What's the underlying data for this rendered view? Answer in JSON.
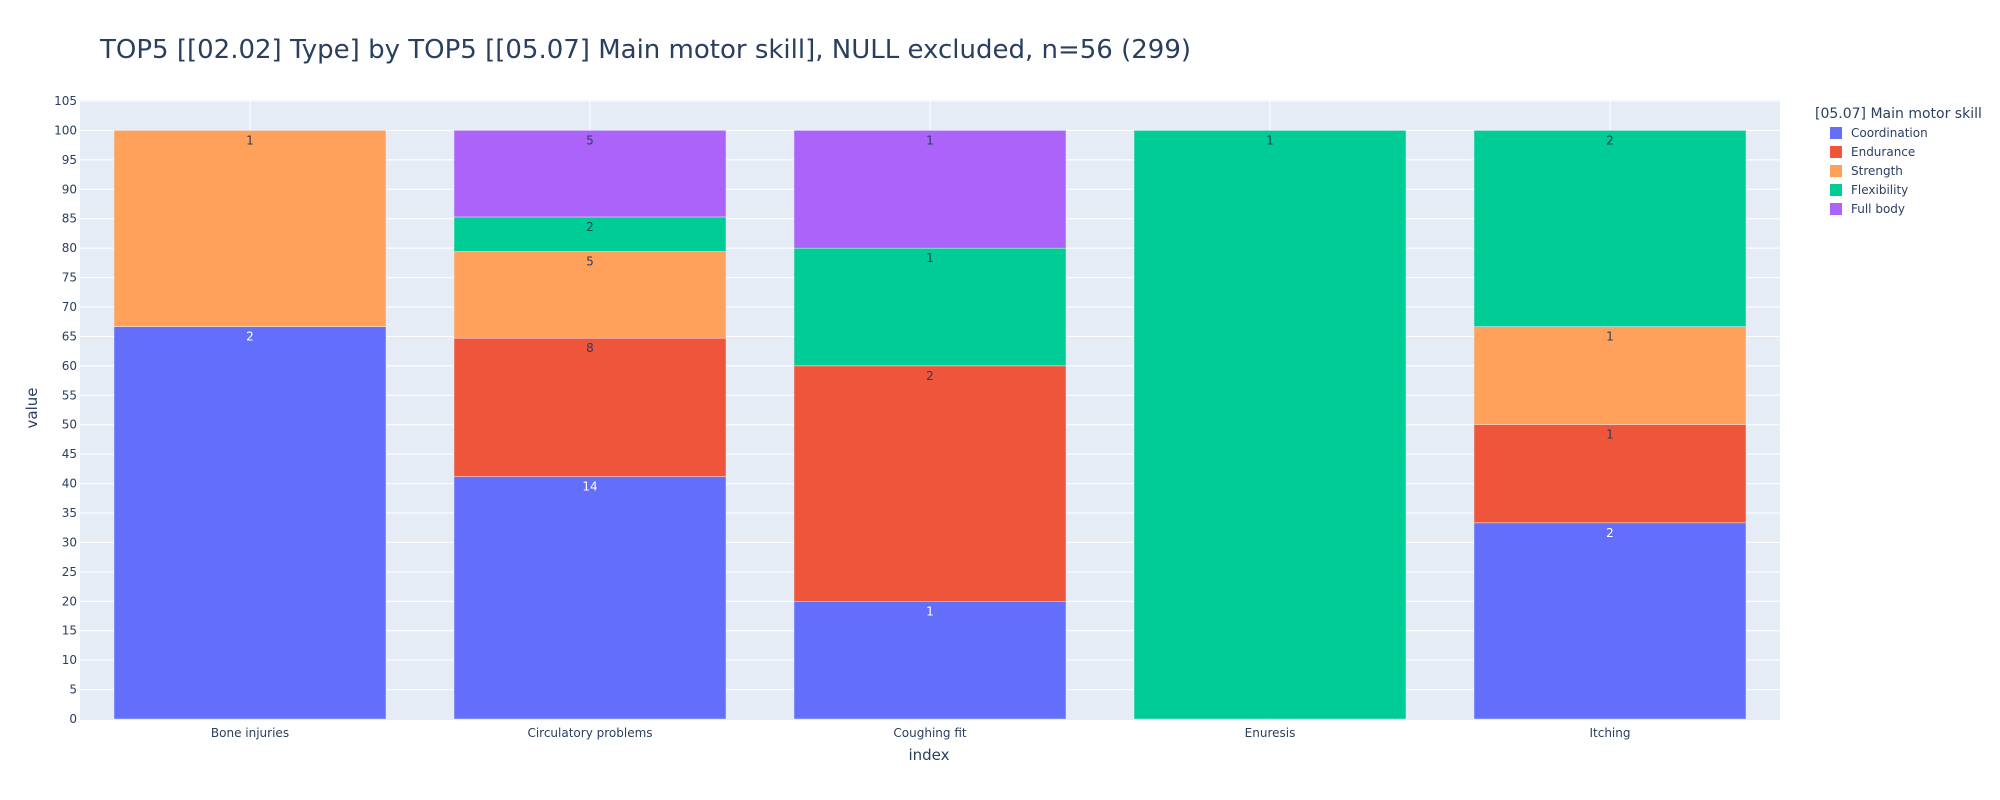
{
  "chart_data": {
    "type": "bar",
    "stacked": true,
    "title": "TOP5 [[02.02] Type] by TOP5 [[05.07] Main motor skill], NULL excluded, n=56 (299)",
    "xlabel": "index",
    "ylabel": "value",
    "ylim": [
      0,
      105
    ],
    "yticks": [
      0,
      5,
      10,
      15,
      20,
      25,
      30,
      35,
      40,
      45,
      50,
      55,
      60,
      65,
      70,
      75,
      80,
      85,
      90,
      95,
      100,
      105
    ],
    "categories": [
      "Bone injuries",
      "Circulatory problems",
      "Coughing fit",
      "Enuresis",
      "Itching"
    ],
    "legend_title": "[05.07] Main motor skill",
    "series": [
      {
        "name": "Coordination",
        "color": "#636efa",
        "label_color": "#ffffff",
        "values": [
          66.67,
          41.18,
          20,
          0,
          33.33
        ],
        "labels": [
          "2",
          "14",
          "1",
          "",
          "2"
        ]
      },
      {
        "name": "Endurance",
        "color": "#ef553b",
        "label_color": "#2a3f5f",
        "values": [
          0,
          23.53,
          40,
          0,
          16.67
        ],
        "labels": [
          "",
          "8",
          "2",
          "",
          "1"
        ]
      },
      {
        "name": "Strength",
        "color": "#ffa15a",
        "label_color": "#2a3f5f",
        "values": [
          33.33,
          14.71,
          0,
          0,
          16.67
        ],
        "labels": [
          "1",
          "5",
          "",
          "",
          "1"
        ]
      },
      {
        "name": "Flexibility",
        "color": "#00cc96",
        "label_color": "#2a3f5f",
        "values": [
          0,
          5.88,
          20,
          100,
          33.33
        ],
        "labels": [
          "",
          "2",
          "1",
          "1",
          "2"
        ]
      },
      {
        "name": "Full body",
        "color": "#ab63fa",
        "label_color": "#2a3f5f",
        "values": [
          0,
          14.71,
          20,
          0,
          0
        ],
        "labels": [
          "",
          "5",
          "1",
          "",
          ""
        ]
      }
    ]
  }
}
